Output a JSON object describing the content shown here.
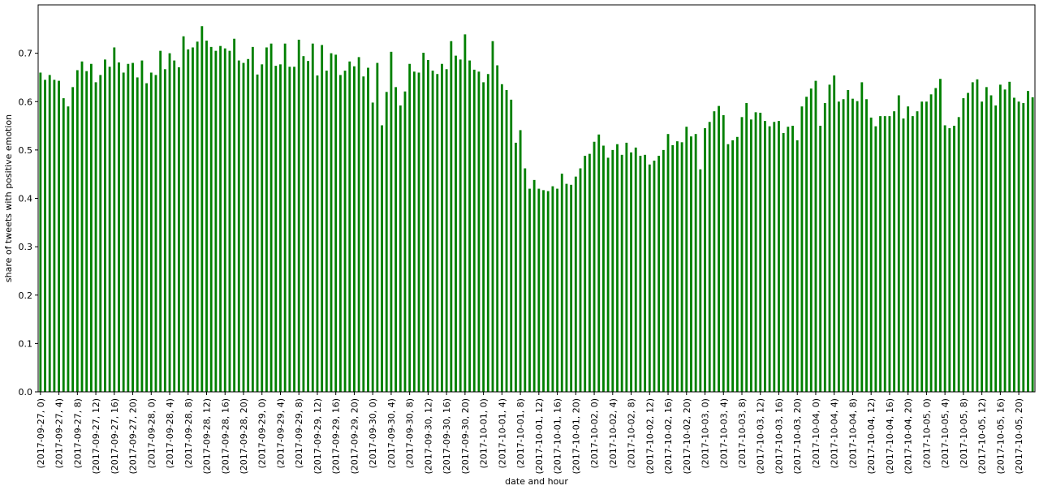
{
  "chart_data": {
    "type": "bar",
    "xlabel": "date and hour",
    "ylabel": "share of tweets with positive emotion",
    "ylim": [
      0,
      0.8
    ],
    "yticks": [
      0.0,
      0.1,
      0.2,
      0.3,
      0.4,
      0.5,
      0.6,
      0.7
    ],
    "ytick_labels": [
      "0.0",
      "0.1",
      "0.2",
      "0.3",
      "0.4",
      "0.5",
      "0.6",
      "0.7"
    ],
    "bar_color": "#008000",
    "grid": false,
    "tick_every": 4,
    "start_day": "2017-09-27",
    "days": [
      "2017-09-27",
      "2017-09-28",
      "2017-09-29",
      "2017-09-30",
      "2017-10-01",
      "2017-10-02",
      "2017-10-03",
      "2017-10-04",
      "2017-10-05"
    ],
    "values": [
      0.66,
      0.645,
      0.655,
      0.645,
      0.643,
      0.607,
      0.59,
      0.63,
      0.665,
      0.683,
      0.663,
      0.678,
      0.64,
      0.655,
      0.687,
      0.672,
      0.712,
      0.681,
      0.66,
      0.678,
      0.68,
      0.65,
      0.685,
      0.638,
      0.66,
      0.655,
      0.705,
      0.667,
      0.7,
      0.685,
      0.671,
      0.735,
      0.708,
      0.712,
      0.724,
      0.756,
      0.726,
      0.713,
      0.705,
      0.715,
      0.71,
      0.705,
      0.73,
      0.685,
      0.68,
      0.688,
      0.713,
      0.656,
      0.677,
      0.712,
      0.72,
      0.674,
      0.677,
      0.72,
      0.672,
      0.672,
      0.728,
      0.694,
      0.684,
      0.72,
      0.654,
      0.717,
      0.664,
      0.7,
      0.697,
      0.655,
      0.664,
      0.683,
      0.673,
      0.692,
      0.652,
      0.67,
      0.598,
      0.68,
      0.551,
      0.62,
      0.703,
      0.63,
      0.592,
      0.621,
      0.678,
      0.662,
      0.66,
      0.701,
      0.686,
      0.664,
      0.657,
      0.678,
      0.667,
      0.725,
      0.695,
      0.687,
      0.739,
      0.685,
      0.666,
      0.662,
      0.64,
      0.657,
      0.725,
      0.675,
      0.636,
      0.624,
      0.604,
      0.515,
      0.541,
      0.462,
      0.42,
      0.438,
      0.42,
      0.417,
      0.415,
      0.425,
      0.42,
      0.451,
      0.43,
      0.428,
      0.445,
      0.462,
      0.488,
      0.492,
      0.517,
      0.532,
      0.509,
      0.484,
      0.5,
      0.512,
      0.49,
      0.515,
      0.495,
      0.505,
      0.488,
      0.49,
      0.47,
      0.478,
      0.488,
      0.5,
      0.533,
      0.51,
      0.518,
      0.516,
      0.548,
      0.528,
      0.533,
      0.46,
      0.545,
      0.558,
      0.58,
      0.591,
      0.572,
      0.512,
      0.52,
      0.527,
      0.568,
      0.597,
      0.563,
      0.578,
      0.577,
      0.56,
      0.549,
      0.558,
      0.56,
      0.535,
      0.548,
      0.55,
      0.52,
      0.59,
      0.61,
      0.627,
      0.643,
      0.55,
      0.597,
      0.635,
      0.654,
      0.6,
      0.605,
      0.624,
      0.606,
      0.601,
      0.64,
      0.605,
      0.567,
      0.549,
      0.57,
      0.57,
      0.57,
      0.58,
      0.613,
      0.565,
      0.59,
      0.57,
      0.58,
      0.6,
      0.6,
      0.615,
      0.628,
      0.647,
      0.551,
      0.545,
      0.55,
      0.568,
      0.607,
      0.618,
      0.64,
      0.646,
      0.6,
      0.63,
      0.613,
      0.592,
      0.635,
      0.625,
      0.641,
      0.608,
      0.6,
      0.597,
      0.622,
      0.609
    ]
  }
}
